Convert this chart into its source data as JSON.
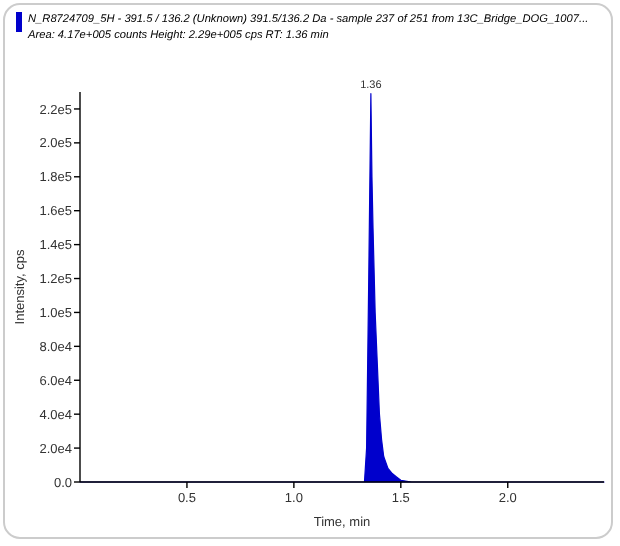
{
  "chart_data": {
    "type": "area",
    "title": "N_R8724709_5H - 391.5 / 136.2 (Unknown) 391.5/136.2 Da - sample 237 of 251 from 13C_Bridge_DOG_1007...",
    "subtitle": "Area: 4.17e+005 counts  Height: 2.29e+005 cps  RT: 1.36 min",
    "xlabel": "Time, min",
    "ylabel": "Intensity, cps",
    "series": [
      {
        "color": "#0000cc",
        "x": [
          0,
          0.5,
          1.0,
          1.3,
          1.33,
          1.34,
          1.35,
          1.36,
          1.365,
          1.37,
          1.38,
          1.39,
          1.4,
          1.41,
          1.42,
          1.44,
          1.46,
          1.48,
          1.5,
          1.55,
          2.0,
          2.45
        ],
        "values": [
          0,
          0,
          0,
          0,
          0,
          20000,
          120000,
          229000,
          180000,
          150000,
          100000,
          70000,
          40000,
          25000,
          15000,
          8000,
          5000,
          3000,
          1000,
          0,
          0,
          0
        ]
      }
    ],
    "annotations": [
      {
        "text": "1.36",
        "x": 1.36,
        "y": 229000
      }
    ],
    "xlim": [
      0,
      2.45
    ],
    "ylim": [
      0,
      230000
    ],
    "xticks": [
      {
        "value": 0.5,
        "label": "0.5"
      },
      {
        "value": 1.0,
        "label": "1.0"
      },
      {
        "value": 1.5,
        "label": "1.5"
      },
      {
        "value": 2.0,
        "label": "2.0"
      }
    ],
    "yticks": [
      {
        "value": 0,
        "label": "0.0"
      },
      {
        "value": 20000,
        "label": "2.0e4"
      },
      {
        "value": 40000,
        "label": "4.0e4"
      },
      {
        "value": 60000,
        "label": "6.0e4"
      },
      {
        "value": 80000,
        "label": "8.0e4"
      },
      {
        "value": 100000,
        "label": "1.0e5"
      },
      {
        "value": 120000,
        "label": "1.2e5"
      },
      {
        "value": 140000,
        "label": "1.4e5"
      },
      {
        "value": 160000,
        "label": "1.6e5"
      },
      {
        "value": 180000,
        "label": "1.8e5"
      },
      {
        "value": 200000,
        "label": "2.0e5"
      },
      {
        "value": 220000,
        "label": "2.2e5"
      }
    ],
    "grid": false
  }
}
